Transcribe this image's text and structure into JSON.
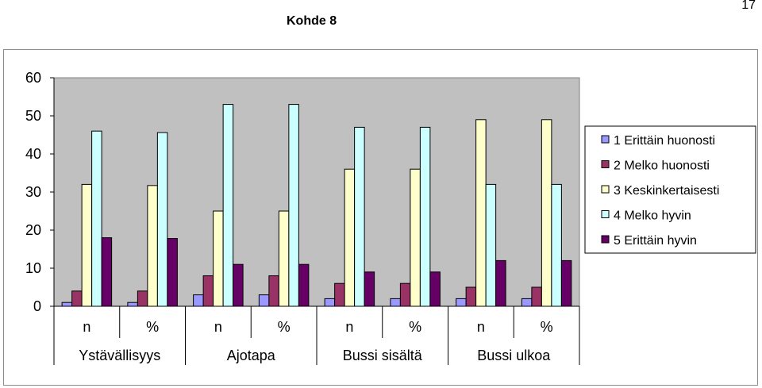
{
  "page": {
    "number": "17",
    "title": "Kohde 8"
  },
  "colors": {
    "plot_background": "#c0c0c0",
    "series": [
      "#9999ff",
      "#993366",
      "#ffffcc",
      "#ccffff",
      "#660066"
    ]
  },
  "chart_data": {
    "type": "bar",
    "title": "",
    "xlabel": "",
    "ylabel": "",
    "ylim": [
      0,
      60
    ],
    "yticks": [
      0,
      10,
      20,
      30,
      40,
      50,
      60
    ],
    "grid": false,
    "legend_position": "right",
    "categories": [
      "n",
      "%",
      "n",
      "%",
      "n",
      "%",
      "n",
      "%"
    ],
    "groups": [
      "Ystävällisyys",
      "Ajotapa",
      "Bussi sisältä",
      "Bussi ulkoa"
    ],
    "series": [
      {
        "name": "1 Erittäin huonosti",
        "values": [
          1,
          1,
          3,
          3,
          2,
          2,
          2,
          2
        ]
      },
      {
        "name": "2 Melko huonosti",
        "values": [
          4,
          4,
          8,
          8,
          6,
          6,
          5,
          5
        ]
      },
      {
        "name": "3 Keskinkertaisesti",
        "values": [
          32,
          31.7,
          25,
          25,
          36,
          36,
          49,
          49
        ]
      },
      {
        "name": "4 Melko hyvin",
        "values": [
          46,
          45.6,
          53,
          53,
          47,
          47,
          32,
          32
        ]
      },
      {
        "name": "5 Erittäin hyvin",
        "values": [
          18,
          17.8,
          11,
          11,
          9,
          9,
          12,
          12
        ]
      }
    ]
  }
}
